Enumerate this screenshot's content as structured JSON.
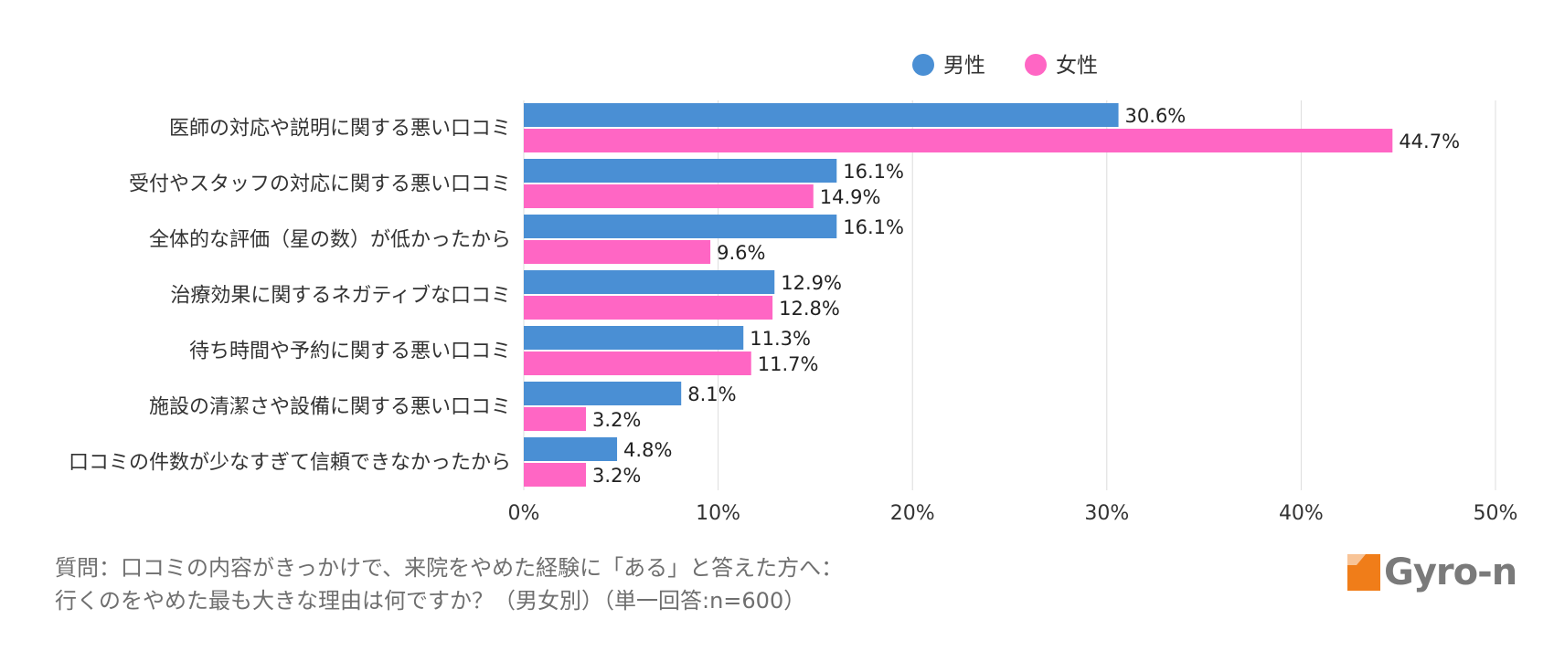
{
  "chart_data": {
    "type": "bar",
    "orientation": "horizontal",
    "categories": [
      "医師の対応や説明に関する悪い口コミ",
      "受付やスタッフの対応に関する悪い口コミ",
      "全体的な評価（星の数）が低かったから",
      "治療効果に関するネガティブな口コミ",
      "待ち時間や予約に関する悪い口コミ",
      "施設の清潔さや設備に関する悪い口コミ",
      "口コミの件数が少なすぎて信頼できなかったから"
    ],
    "series": [
      {
        "name": "男性",
        "color": "#4a8fd4",
        "values": [
          30.6,
          16.1,
          16.1,
          12.9,
          11.3,
          8.1,
          4.8
        ],
        "labels": [
          "30.6%",
          "16.1%",
          "16.1%",
          "12.9%",
          "11.3%",
          "8.1%",
          "4.8%"
        ]
      },
      {
        "name": "女性",
        "color": "#ff66c4",
        "values": [
          44.7,
          14.9,
          9.6,
          12.8,
          11.7,
          3.2,
          3.2
        ],
        "labels": [
          "44.7%",
          "14.9%",
          "9.6%",
          "12.8%",
          "11.7%",
          "3.2%",
          "3.2%"
        ]
      }
    ],
    "xlim": [
      0,
      50
    ],
    "xticks": [
      "0%",
      "10%",
      "20%",
      "30%",
      "40%",
      "50%"
    ],
    "grid": true,
    "legend": "top-right"
  },
  "footer": {
    "line1": "質問：口コミの内容がきっかけで、来院をやめた経験に「ある」と答えた方へ：",
    "line2": "行くのをやめた最も大きな理由は何ですか？（男女別）（単一回答:n=600）"
  },
  "logo": {
    "text": "Gyro-n",
    "mark_color": "#f07d19"
  }
}
